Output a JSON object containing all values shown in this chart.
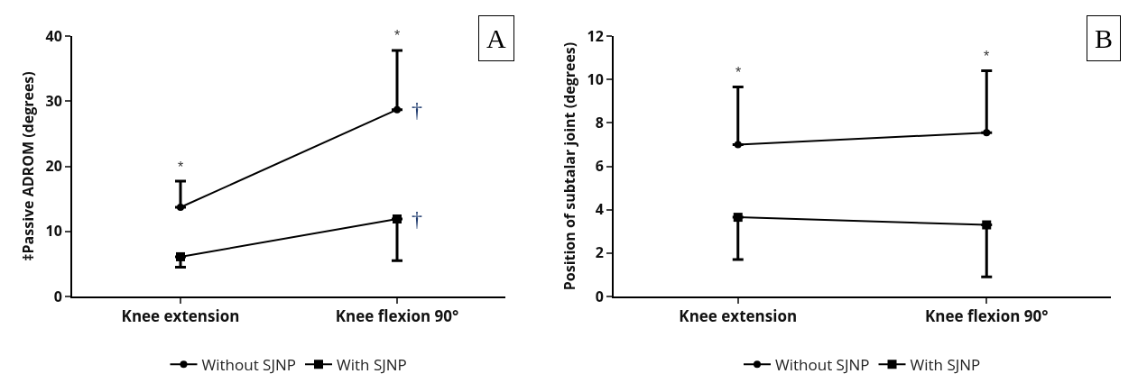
{
  "chart_data": [
    {
      "type": "line",
      "categories": [
        "Knee extension",
        "Knee flexion 90°"
      ],
      "ylabel": "‡Passive ADROM (degrees)",
      "ylim": [
        0,
        40
      ],
      "yticks": [
        0,
        10,
        20,
        30,
        40
      ],
      "grid": false,
      "legend": "bottom",
      "line_style": "solid",
      "series": [
        {
          "name": "Without SJNP",
          "color": "#000000",
          "marker": "circle",
          "values": [
            13.7,
            28.7
          ],
          "errors": [
            [
              13.7,
              17.7
            ],
            [
              28.7,
              37.8
            ]
          ]
        },
        {
          "name": "With SJNP",
          "color": "#000000",
          "marker": "square",
          "values": [
            6.1,
            11.9
          ],
          "errors": [
            [
              4.5,
              6.1
            ],
            [
              5.5,
              11.9
            ]
          ]
        }
      ],
      "annotations": [
        "A",
        {
          "text": "*",
          "x": "Knee extension",
          "y": 17.7
        },
        {
          "text": "*",
          "x": "Knee flexion 90°",
          "y": 37.8
        },
        {
          "text": "†",
          "x": "Knee flexion 90°",
          "y": 28.7
        },
        {
          "text": "†",
          "x": "Knee flexion 90°",
          "y": 11.9
        }
      ]
    },
    {
      "type": "line",
      "categories": [
        "Knee extension",
        "Knee flexion 90°"
      ],
      "ylabel": "Position of subtalar joint (degrees)",
      "ylim": [
        0,
        12
      ],
      "yticks": [
        0,
        2,
        4,
        6,
        8,
        10,
        12
      ],
      "grid": false,
      "legend": "bottom",
      "line_style": "solid",
      "series": [
        {
          "name": "Without SJNP",
          "color": "#000000",
          "marker": "circle",
          "values": [
            7.0,
            7.55
          ],
          "errors": [
            [
              7.0,
              9.65
            ],
            [
              7.55,
              10.4
            ]
          ]
        },
        {
          "name": "With SJNP",
          "color": "#000000",
          "marker": "square",
          "values": [
            3.65,
            3.3
          ],
          "errors": [
            [
              1.7,
              3.65
            ],
            [
              0.9,
              3.3
            ]
          ]
        }
      ],
      "annotations": [
        "B",
        {
          "text": "*",
          "x": "Knee extension",
          "y": 9.65
        },
        {
          "text": "*",
          "x": "Knee flexion 90°",
          "y": 10.4
        }
      ]
    }
  ]
}
